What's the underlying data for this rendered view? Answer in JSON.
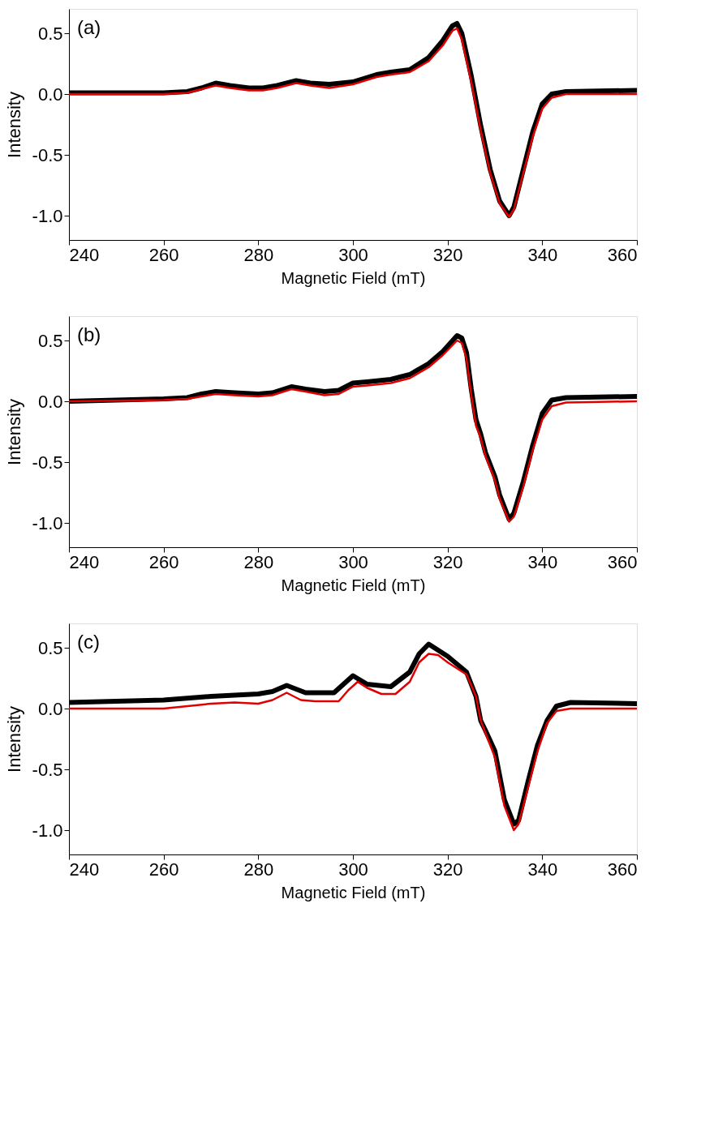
{
  "chart_data": [
    {
      "type": "line",
      "xlabel": "Magnetic Field (mT)",
      "ylabel": "Intensity",
      "annotations": [
        "(a)"
      ],
      "xlim": [
        240,
        360
      ],
      "ylim": [
        -1.2,
        0.7
      ],
      "xticks": [
        240,
        260,
        280,
        300,
        320,
        340,
        360
      ],
      "yticks": [
        {
          "value": -1.0,
          "label": "-1.0"
        },
        {
          "value": -0.5,
          "label": "-0.5"
        },
        {
          "value": 0,
          "label": "0.0"
        },
        {
          "value": 0.5,
          "label": "0.5"
        }
      ],
      "grid": false,
      "marker": "none",
      "line_style": "solid",
      "series": [
        {
          "color": "#000000",
          "x": [
            240,
            260,
            265,
            268,
            271,
            274,
            278,
            281,
            284,
            288,
            291,
            295,
            300,
            305,
            308,
            312,
            316,
            319,
            321,
            322,
            323,
            325,
            327,
            329,
            331,
            333,
            334,
            336,
            338,
            340,
            342,
            345,
            360
          ],
          "values": [
            0.01,
            0.01,
            0.02,
            0.05,
            0.09,
            0.07,
            0.05,
            0.05,
            0.07,
            0.11,
            0.09,
            0.08,
            0.1,
            0.16,
            0.18,
            0.2,
            0.3,
            0.44,
            0.56,
            0.58,
            0.5,
            0.15,
            -0.26,
            -0.62,
            -0.88,
            -1.0,
            -0.93,
            -0.62,
            -0.31,
            -0.08,
            0.0,
            0.02,
            0.03
          ]
        },
        {
          "color": "#e00000",
          "x": [
            240,
            260,
            265,
            268,
            271,
            274,
            278,
            281,
            284,
            288,
            291,
            295,
            300,
            305,
            308,
            312,
            316,
            319,
            321,
            322,
            323,
            325,
            327,
            329,
            331,
            333,
            334,
            336,
            338,
            340,
            342,
            345,
            360
          ],
          "values": [
            0,
            0,
            0.01,
            0.04,
            0.07,
            0.05,
            0.03,
            0.03,
            0.05,
            0.09,
            0.07,
            0.05,
            0.08,
            0.14,
            0.16,
            0.18,
            0.27,
            0.4,
            0.52,
            0.54,
            0.45,
            0.1,
            -0.3,
            -0.65,
            -0.9,
            -1.01,
            -0.95,
            -0.65,
            -0.35,
            -0.12,
            -0.03,
            0,
            0
          ]
        }
      ]
    },
    {
      "type": "line",
      "xlabel": "Magnetic Field (mT)",
      "ylabel": "Intensity",
      "annotations": [
        "(b)"
      ],
      "xlim": [
        240,
        360
      ],
      "ylim": [
        -1.2,
        0.7
      ],
      "xticks": [
        240,
        260,
        280,
        300,
        320,
        340,
        360
      ],
      "yticks": [
        {
          "value": -1.0,
          "label": "-1.0"
        },
        {
          "value": -0.5,
          "label": "-0.5"
        },
        {
          "value": 0,
          "label": "0.0"
        },
        {
          "value": 0.5,
          "label": "0.5"
        }
      ],
      "grid": false,
      "marker": "none",
      "line_style": "solid",
      "series": [
        {
          "color": "#000000",
          "x": [
            240,
            260,
            265,
            268,
            271,
            275,
            280,
            283,
            287,
            290,
            294,
            297,
            300,
            303,
            308,
            312,
            316,
            319,
            322,
            323,
            324,
            325,
            326,
            327,
            328,
            329,
            330,
            331,
            333,
            334,
            336,
            338,
            340,
            342,
            345,
            360
          ],
          "values": [
            0.0,
            0.02,
            0.03,
            0.06,
            0.08,
            0.07,
            0.06,
            0.07,
            0.12,
            0.1,
            0.08,
            0.09,
            0.15,
            0.16,
            0.18,
            0.22,
            0.31,
            0.41,
            0.54,
            0.52,
            0.4,
            0.1,
            -0.15,
            -0.27,
            -0.42,
            -0.52,
            -0.62,
            -0.77,
            -0.97,
            -0.92,
            -0.66,
            -0.36,
            -0.1,
            0.01,
            0.03,
            0.04
          ]
        },
        {
          "color": "#e00000",
          "x": [
            240,
            260,
            265,
            268,
            271,
            275,
            280,
            283,
            287,
            290,
            294,
            297,
            300,
            303,
            308,
            312,
            316,
            319,
            322,
            323,
            324,
            325,
            326,
            327,
            328,
            329,
            330,
            331,
            333,
            334,
            336,
            338,
            340,
            342,
            345,
            360
          ],
          "values": [
            0,
            0.01,
            0.02,
            0.04,
            0.06,
            0.05,
            0.04,
            0.05,
            0.1,
            0.08,
            0.05,
            0.06,
            0.12,
            0.13,
            0.15,
            0.19,
            0.28,
            0.38,
            0.5,
            0.48,
            0.35,
            0.05,
            -0.2,
            -0.3,
            -0.45,
            -0.55,
            -0.65,
            -0.8,
            -0.99,
            -0.95,
            -0.7,
            -0.4,
            -0.15,
            -0.04,
            -0.01,
            0
          ]
        }
      ]
    },
    {
      "type": "line",
      "xlabel": "Magnetic Field (mT)",
      "ylabel": "Intensity",
      "annotations": [
        "(c)"
      ],
      "xlim": [
        240,
        360
      ],
      "ylim": [
        -1.2,
        0.7
      ],
      "xticks": [
        240,
        260,
        280,
        300,
        320,
        340,
        360
      ],
      "yticks": [
        {
          "value": -1.0,
          "label": "-1.0"
        },
        {
          "value": -0.5,
          "label": "-0.5"
        },
        {
          "value": 0,
          "label": "0.0"
        },
        {
          "value": 0.5,
          "label": "0.5"
        }
      ],
      "grid": false,
      "marker": "none",
      "line_style": "solid",
      "series": [
        {
          "color": "#000000",
          "x": [
            240,
            260,
            270,
            280,
            283,
            286,
            290,
            296,
            298,
            300,
            303,
            308,
            312,
            314,
            316,
            318,
            320,
            324,
            326,
            327,
            328,
            330,
            332,
            334,
            335,
            337,
            339,
            341,
            343,
            346,
            360
          ],
          "values": [
            0.05,
            0.07,
            0.1,
            0.12,
            0.14,
            0.19,
            0.13,
            0.13,
            0.2,
            0.27,
            0.2,
            0.18,
            0.3,
            0.45,
            0.53,
            0.48,
            0.43,
            0.3,
            0.1,
            -0.1,
            -0.18,
            -0.35,
            -0.75,
            -0.95,
            -0.92,
            -0.6,
            -0.3,
            -0.1,
            0.02,
            0.05,
            0.04
          ]
        },
        {
          "color": "#e00000",
          "x": [
            240,
            260,
            270,
            275,
            280,
            283,
            286,
            289,
            292,
            297,
            299,
            301,
            303,
            306,
            309,
            312,
            314,
            316,
            318,
            320,
            324,
            326,
            327,
            328,
            330,
            332,
            334,
            335,
            337,
            339,
            341,
            343,
            346,
            360
          ],
          "values": [
            0,
            0,
            0.04,
            0.05,
            0.04,
            0.07,
            0.13,
            0.07,
            0.06,
            0.06,
            0.15,
            0.22,
            0.17,
            0.12,
            0.12,
            0.22,
            0.38,
            0.45,
            0.44,
            0.38,
            0.28,
            0.1,
            -0.1,
            -0.2,
            -0.4,
            -0.8,
            -1.0,
            -0.95,
            -0.65,
            -0.35,
            -0.12,
            -0.02,
            0,
            0
          ]
        }
      ]
    }
  ]
}
